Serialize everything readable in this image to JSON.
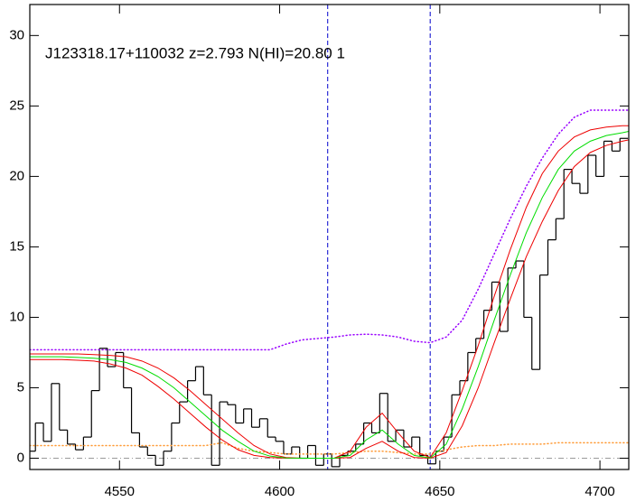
{
  "chart_data": {
    "type": "line",
    "title": "J123318.17+110032 z=2.793 N(HI)=20.80 1",
    "xlim": [
      4522,
      4709
    ],
    "ylim": [
      -0.8,
      32.2
    ],
    "xticks": [
      4550,
      4600,
      4650,
      4700
    ],
    "yticks": [
      0,
      5,
      10,
      15,
      20,
      25,
      30
    ],
    "vlines": [
      4615,
      4647
    ],
    "vline_color": "#0000cc",
    "hlines": [
      0
    ],
    "hline_color": "#999999",
    "series": [
      {
        "color": "#000000",
        "style": "step",
        "x": [
          4522.5,
          4525,
          4527.5,
          4530,
          4532.5,
          4535,
          4537.5,
          4540,
          4542.5,
          4545,
          4547.5,
          4550,
          4552.5,
          4555,
          4557.5,
          4560,
          4562.5,
          4565,
          4567.5,
          4570,
          4572.5,
          4575,
          4577.5,
          4580,
          4582.5,
          4585,
          4587.5,
          4590,
          4592.5,
          4595,
          4597.5,
          4600,
          4602.5,
          4605,
          4607.5,
          4610,
          4612.5,
          4615,
          4617.5,
          4620,
          4622.5,
          4625,
          4627.5,
          4630,
          4632.5,
          4635,
          4637.5,
          4640,
          4642.5,
          4645,
          4647.5,
          4650,
          4652.5,
          4655,
          4657.5,
          4660,
          4662.5,
          4665,
          4667.5,
          4670,
          4672.5,
          4675,
          4677.5,
          4680,
          4682.5,
          4685,
          4687.5,
          4690,
          4692.5,
          4695,
          4697.5,
          4700,
          4702.5,
          4705,
          4707.5
        ],
        "values": [
          0.5,
          2.5,
          1.2,
          5.3,
          2.0,
          1.0,
          0.6,
          1.5,
          4.8,
          7.8,
          6.5,
          7.5,
          5.0,
          1.8,
          0.8,
          0.2,
          -0.5,
          0.5,
          2.5,
          4.0,
          5.5,
          6.5,
          4.5,
          -0.5,
          4.0,
          3.8,
          2.5,
          3.5,
          2.2,
          2.8,
          1.5,
          1.2,
          0.3,
          0.8,
          0.0,
          0.9,
          -0.5,
          0.3,
          -0.6,
          0.2,
          0.5,
          1.0,
          2.5,
          1.8,
          4.6,
          1.2,
          2.0,
          0.8,
          1.5,
          0.2,
          -0.4,
          0.5,
          1.5,
          4.5,
          5.5,
          7.5,
          8.5,
          10.5,
          12.5,
          9.0,
          13.5,
          14.0,
          10.0,
          6.3,
          13.0,
          15.5,
          17.0,
          20.5,
          19.5,
          18.8,
          21.5,
          20.0,
          22.5,
          21.8,
          22.7
        ]
      },
      {
        "color": "#9900ff",
        "style": "dotted",
        "x": [
          4522,
          4527,
          4532,
          4537,
          4542,
          4547,
          4552,
          4557,
          4562,
          4567,
          4572,
          4577,
          4582,
          4587,
          4592,
          4597,
          4602,
          4607,
          4612,
          4617,
          4622,
          4627,
          4632,
          4637,
          4642,
          4647,
          4652,
          4657,
          4662,
          4667,
          4672,
          4677,
          4682,
          4687,
          4692,
          4697,
          4702,
          4707,
          4709
        ],
        "values": [
          7.7,
          7.7,
          7.7,
          7.7,
          7.7,
          7.7,
          7.7,
          7.7,
          7.7,
          7.7,
          7.7,
          7.7,
          7.7,
          7.7,
          7.7,
          7.7,
          8.1,
          8.4,
          8.5,
          8.6,
          8.75,
          8.8,
          8.75,
          8.6,
          8.3,
          8.2,
          8.6,
          9.8,
          12,
          14.5,
          17,
          19.3,
          21.3,
          23,
          24.2,
          24.7,
          24.7,
          24.7,
          24.7
        ]
      },
      {
        "color": "#ff9933",
        "style": "dotted",
        "x": [
          4522,
          4527,
          4532,
          4537,
          4542,
          4547,
          4552,
          4557,
          4562,
          4567,
          4572,
          4577,
          4582,
          4587,
          4592,
          4597,
          4602,
          4607,
          4612,
          4617,
          4622,
          4627,
          4632,
          4637,
          4642,
          4647,
          4652,
          4657,
          4662,
          4667,
          4672,
          4677,
          4682,
          4687,
          4692,
          4697,
          4702,
          4707,
          4709
        ],
        "values": [
          0.9,
          0.9,
          0.9,
          0.9,
          0.9,
          0.9,
          0.9,
          0.9,
          0.9,
          0.9,
          0.9,
          0.9,
          1.1,
          0.7,
          0.5,
          0.4,
          0.3,
          0.3,
          0.3,
          0.3,
          0.4,
          0.5,
          0.5,
          0.4,
          0.3,
          0.3,
          0.6,
          0.8,
          0.9,
          0.9,
          1.0,
          1.0,
          1.0,
          1.1,
          1.1,
          1.1,
          1.1,
          1.1,
          1.1
        ]
      },
      {
        "color": "#ee0000",
        "style": "solid",
        "x": [
          4522,
          4527,
          4532,
          4537,
          4542,
          4547,
          4552,
          4557,
          4562,
          4567,
          4572,
          4577,
          4582,
          4587,
          4592,
          4597,
          4602,
          4607,
          4612,
          4617,
          4622,
          4627,
          4632,
          4637,
          4642,
          4647,
          4652,
          4657,
          4662,
          4667,
          4672,
          4677,
          4682,
          4687,
          4692,
          4697,
          4702,
          4707,
          4709
        ],
        "values": [
          7.4,
          7.4,
          7.4,
          7.4,
          7.35,
          7.3,
          7.2,
          6.9,
          6.4,
          5.7,
          4.8,
          3.8,
          2.8,
          1.8,
          0.9,
          0.3,
          0.05,
          0,
          0,
          0,
          0.5,
          2.2,
          3.2,
          1.8,
          0.5,
          0.05,
          1.8,
          4.8,
          8.0,
          11.5,
          14.8,
          17.8,
          20.2,
          21.8,
          22.8,
          23.3,
          23.5,
          23.6,
          23.6
        ]
      },
      {
        "color": "#ee0000",
        "style": "solid",
        "x": [
          4522,
          4527,
          4532,
          4537,
          4542,
          4547,
          4552,
          4557,
          4562,
          4567,
          4572,
          4577,
          4582,
          4587,
          4592,
          4597,
          4602,
          4607,
          4612,
          4617,
          4622,
          4627,
          4632,
          4637,
          4642,
          4647,
          4652,
          4657,
          4662,
          4667,
          4672,
          4677,
          4682,
          4687,
          4692,
          4697,
          4702,
          4707,
          4709
        ],
        "values": [
          7.0,
          7.0,
          7.0,
          6.95,
          6.9,
          6.7,
          6.4,
          5.9,
          5.1,
          4.2,
          3.2,
          2.2,
          1.3,
          0.6,
          0.2,
          0.05,
          0,
          0,
          0,
          0,
          0.05,
          0.7,
          1.2,
          0.5,
          0.05,
          0,
          0.4,
          2.3,
          5.0,
          8.2,
          11.3,
          14.3,
          16.8,
          19.0,
          20.7,
          21.7,
          22.2,
          22.5,
          22.6
        ]
      },
      {
        "color": "#00dd00",
        "style": "solid",
        "x": [
          4522,
          4527,
          4532,
          4537,
          4542,
          4547,
          4552,
          4557,
          4562,
          4567,
          4572,
          4577,
          4582,
          4587,
          4592,
          4597,
          4602,
          4607,
          4612,
          4617,
          4622,
          4627,
          4632,
          4637,
          4642,
          4647,
          4652,
          4657,
          4662,
          4667,
          4672,
          4677,
          4682,
          4687,
          4692,
          4697,
          4702,
          4707,
          4709
        ],
        "values": [
          7.2,
          7.2,
          7.2,
          7.15,
          7.1,
          7.0,
          6.8,
          6.4,
          5.8,
          5.0,
          4.0,
          3.0,
          2.0,
          1.2,
          0.5,
          0.15,
          0.02,
          0,
          0,
          0,
          0.2,
          1.3,
          2.0,
          1.0,
          0.2,
          0.02,
          1.0,
          3.5,
          6.5,
          9.8,
          13,
          16,
          18.5,
          20.5,
          21.8,
          22.5,
          22.9,
          23.1,
          23.2
        ]
      }
    ]
  }
}
